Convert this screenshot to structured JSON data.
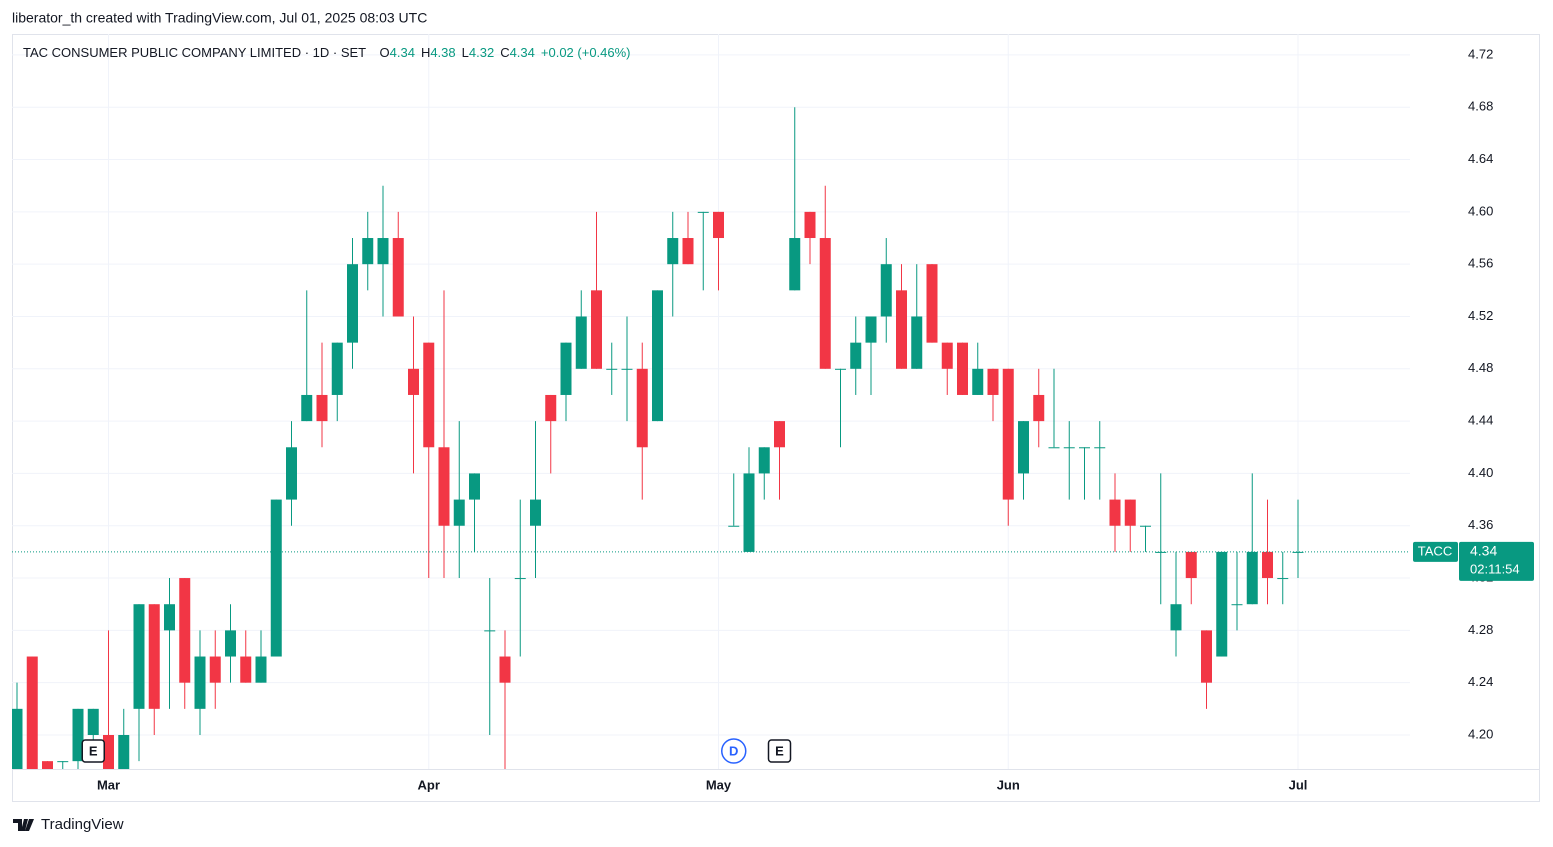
{
  "attribution": "liberator_th created with TradingView.com, Jul 01, 2025 08:03 UTC",
  "footer": "TradingView",
  "chart_data": {
    "type": "candlestick",
    "title": "TAC CONSUMER PUBLIC COMPANY LIMITED · 1D · SET",
    "ohlc_labels": [
      "O",
      "H",
      "L",
      "C"
    ],
    "change": "+0.02 (+0.46%)",
    "symbol": "TACC",
    "countdown": "02:11:54",
    "events": [
      {
        "label": "E"
      },
      {
        "label": "D"
      },
      {
        "label": "E"
      }
    ],
    "up_color": "#089981",
    "down_color": "#f23645",
    "grid": true,
    "ylim": [
      4.174,
      4.736
    ],
    "yticks": [
      {
        "value": 4.2,
        "label": "4.20"
      },
      4.24,
      4.28,
      4.32,
      4.36,
      {
        "value": 4.4,
        "label": "4.40"
      },
      4.44,
      4.48,
      4.52,
      4.56,
      {
        "value": 4.6,
        "label": "4.60"
      },
      4.64,
      4.68,
      4.72
    ],
    "categories": [
      null,
      null,
      null,
      null,
      null,
      null,
      "Mar",
      null,
      null,
      null,
      null,
      null,
      null,
      null,
      null,
      null,
      null,
      null,
      null,
      null,
      null,
      null,
      null,
      null,
      null,
      null,
      null,
      "Apr",
      null,
      null,
      null,
      null,
      null,
      null,
      null,
      null,
      null,
      null,
      null,
      null,
      null,
      null,
      null,
      null,
      null,
      null,
      "May",
      null,
      null,
      null,
      null,
      null,
      null,
      null,
      null,
      null,
      null,
      null,
      null,
      null,
      null,
      null,
      null,
      null,
      null,
      "Jun",
      null,
      null,
      null,
      null,
      null,
      null,
      null,
      null,
      null,
      null,
      null,
      null,
      null,
      null,
      null,
      null,
      null,
      null,
      "Jul"
    ],
    "open": [
      4.17,
      4.26,
      4.18,
      4.18,
      4.18,
      4.2,
      4.2,
      4.17,
      4.22,
      4.3,
      4.28,
      4.32,
      4.22,
      4.26,
      4.26,
      4.26,
      4.24,
      4.26,
      4.38,
      4.44,
      4.46,
      4.46,
      4.5,
      4.56,
      4.56,
      4.58,
      4.48,
      4.5,
      4.42,
      4.36,
      4.38,
      4.28,
      4.26,
      4.32,
      4.36,
      4.46,
      4.46,
      4.48,
      4.54,
      4.48,
      4.48,
      4.48,
      4.44,
      4.56,
      4.58,
      4.6,
      4.6,
      4.36,
      4.34,
      4.4,
      4.44,
      4.54,
      4.6,
      4.58,
      4.48,
      4.48,
      4.5,
      4.52,
      4.54,
      4.48,
      4.56,
      4.5,
      4.5,
      4.46,
      4.48,
      4.48,
      4.4,
      4.46,
      4.42,
      4.42,
      4.42,
      4.42,
      4.38,
      4.38,
      4.36,
      4.34,
      4.28,
      4.34,
      4.28,
      4.26,
      4.3,
      4.3,
      4.34,
      4.32,
      4.34
    ],
    "high": [
      4.24,
      4.26,
      4.18,
      4.18,
      4.22,
      4.22,
      4.28,
      4.22,
      4.3,
      4.3,
      4.32,
      4.32,
      4.28,
      4.28,
      4.3,
      4.28,
      4.28,
      4.38,
      4.44,
      4.54,
      4.5,
      4.5,
      4.58,
      4.6,
      4.62,
      4.6,
      4.52,
      4.5,
      4.54,
      4.44,
      4.4,
      4.32,
      4.28,
      4.38,
      4.44,
      4.46,
      4.5,
      4.54,
      4.6,
      4.5,
      4.52,
      4.5,
      4.54,
      4.6,
      4.6,
      4.6,
      4.6,
      4.4,
      4.42,
      4.42,
      4.44,
      4.68,
      4.6,
      4.62,
      4.48,
      4.52,
      4.52,
      4.58,
      4.56,
      4.56,
      4.56,
      4.5,
      4.5,
      4.5,
      4.48,
      4.48,
      4.44,
      4.48,
      4.48,
      4.44,
      4.42,
      4.44,
      4.4,
      4.38,
      4.36,
      4.4,
      4.34,
      4.34,
      4.28,
      4.34,
      4.34,
      4.4,
      4.38,
      4.34,
      4.38
    ],
    "low": [
      4.17,
      4.17,
      4.17,
      4.17,
      4.17,
      4.19,
      4.17,
      4.17,
      4.18,
      4.2,
      4.22,
      4.22,
      4.2,
      4.22,
      4.24,
      4.24,
      4.24,
      4.26,
      4.36,
      4.44,
      4.42,
      4.44,
      4.48,
      4.54,
      4.52,
      4.52,
      4.4,
      4.32,
      4.32,
      4.32,
      4.34,
      4.2,
      4.17,
      4.26,
      4.32,
      4.4,
      4.44,
      4.48,
      4.48,
      4.46,
      4.44,
      4.38,
      4.44,
      4.52,
      4.56,
      4.54,
      4.54,
      4.36,
      4.34,
      4.38,
      4.38,
      4.54,
      4.56,
      4.48,
      4.42,
      4.46,
      4.46,
      4.5,
      4.48,
      4.48,
      4.5,
      4.46,
      4.46,
      4.46,
      4.44,
      4.36,
      4.38,
      4.42,
      4.42,
      4.38,
      4.38,
      4.38,
      4.34,
      4.34,
      4.34,
      4.3,
      4.26,
      4.3,
      4.22,
      4.26,
      4.28,
      4.3,
      4.3,
      4.3,
      4.32
    ],
    "close": [
      4.22,
      4.17,
      4.17,
      4.18,
      4.22,
      4.22,
      4.17,
      4.2,
      4.3,
      4.22,
      4.3,
      4.24,
      4.26,
      4.24,
      4.28,
      4.24,
      4.26,
      4.38,
      4.42,
      4.46,
      4.44,
      4.5,
      4.56,
      4.58,
      4.58,
      4.52,
      4.46,
      4.42,
      4.36,
      4.38,
      4.4,
      4.28,
      4.24,
      4.32,
      4.38,
      4.44,
      4.5,
      4.52,
      4.48,
      4.48,
      4.48,
      4.42,
      4.54,
      4.58,
      4.56,
      4.6,
      4.58,
      4.36,
      4.4,
      4.42,
      4.42,
      4.58,
      4.58,
      4.48,
      4.48,
      4.5,
      4.52,
      4.56,
      4.48,
      4.52,
      4.5,
      4.48,
      4.46,
      4.48,
      4.46,
      4.38,
      4.44,
      4.44,
      4.42,
      4.42,
      4.42,
      4.42,
      4.36,
      4.36,
      4.36,
      4.34,
      4.3,
      4.32,
      4.24,
      4.34,
      4.3,
      4.34,
      4.32,
      4.32,
      4.34
    ]
  }
}
